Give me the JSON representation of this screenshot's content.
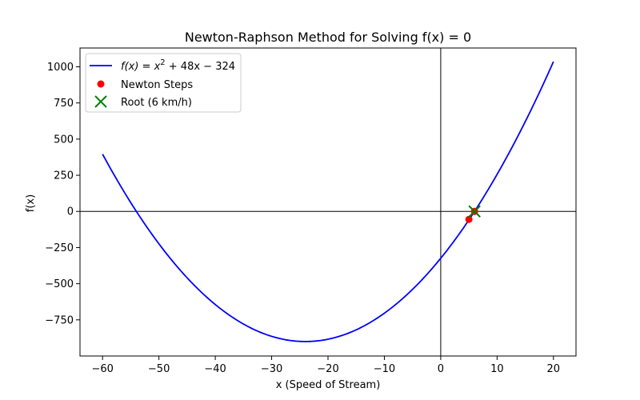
{
  "chart_data": {
    "type": "line",
    "title": "Newton-Raphson Method for Solving f(x) = 0",
    "xlabel": "x (Speed of Stream)",
    "ylabel": "f(x)",
    "xlim": [
      -64,
      24
    ],
    "ylim": [
      -1000,
      1130
    ],
    "xticks": [
      -60,
      -50,
      -40,
      -30,
      -20,
      -10,
      0,
      10,
      20
    ],
    "yticks": [
      -750,
      -500,
      -250,
      0,
      250,
      500,
      750,
      1000
    ],
    "xtick_labels": [
      "−60",
      "−50",
      "−40",
      "−30",
      "−20",
      "−10",
      "0",
      "10",
      "20"
    ],
    "ytick_labels": [
      "−750",
      "−500",
      "−250",
      "0",
      "250",
      "500",
      "750",
      "1000"
    ],
    "grid": false,
    "legend_position": "top-left",
    "reference_lines": [
      "x = 0",
      "y = 0"
    ],
    "series": [
      {
        "name": "f(x) = x² + 48x − 324",
        "kind": "line",
        "color": "#0000ff",
        "x": [
          -60,
          -54,
          -48,
          -42,
          -36,
          -30,
          -24,
          -18,
          -12,
          -6,
          0,
          6,
          12,
          18,
          20
        ],
        "y": [
          396,
          0,
          -324,
          -576,
          -756,
          -864,
          -900,
          -864,
          -756,
          -576,
          -324,
          0,
          396,
          864,
          1036
        ]
      },
      {
        "name": "Newton Steps",
        "kind": "scatter",
        "color": "#ff0000",
        "x": [
          5,
          6,
          6
        ],
        "y": [
          -55,
          0,
          0
        ]
      },
      {
        "name": "Root (6 km/h)",
        "kind": "marker-x",
        "color": "#008000",
        "x": [
          6
        ],
        "y": [
          0
        ]
      }
    ],
    "legend": [
      {
        "label_prefix": "f(x) = x",
        "label_sup": "2",
        "label_suffix": " + 48x − 324",
        "kind": "line",
        "color": "#0000ff"
      },
      {
        "label": "Newton Steps",
        "kind": "scatter",
        "color": "#ff0000"
      },
      {
        "label": "Root (6 km/h)",
        "kind": "marker-x",
        "color": "#008000"
      }
    ]
  }
}
